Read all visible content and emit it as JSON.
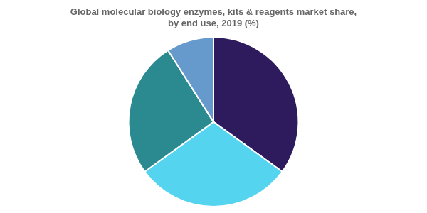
{
  "chart_data": {
    "type": "pie",
    "title": [
      "Global molecular biology enzymes, kits & reagents market share,",
      "by end use, 2019 (%)"
    ],
    "values": [
      35,
      30,
      26,
      9
    ],
    "colors": [
      "#2d1b5e",
      "#55d4f0",
      "#2a8a8f",
      "#6699cc"
    ]
  }
}
